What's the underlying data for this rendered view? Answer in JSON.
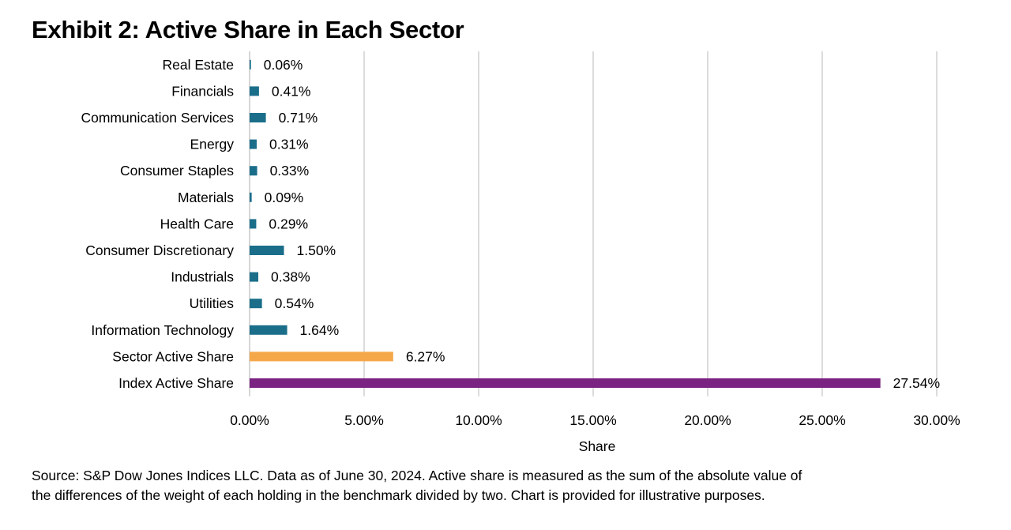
{
  "chart_data": {
    "type": "bar",
    "orientation": "horizontal",
    "title": "Exhibit 2: Active Share in Each Sector",
    "categories": [
      "Real Estate",
      "Financials",
      "Communication Services",
      "Energy",
      "Consumer Staples",
      "Materials",
      "Health Care",
      "Consumer Discretionary",
      "Industrials",
      "Utilities",
      "Information Technology",
      "Sector Active Share",
      "Index Active Share"
    ],
    "values": [
      0.06,
      0.41,
      0.71,
      0.31,
      0.33,
      0.09,
      0.29,
      1.5,
      0.38,
      0.54,
      1.64,
      6.27,
      27.54
    ],
    "data_labels": [
      "0.06%",
      "0.41%",
      "0.71%",
      "0.31%",
      "0.33%",
      "0.09%",
      "0.29%",
      "1.50%",
      "0.38%",
      "0.54%",
      "1.64%",
      "6.27%",
      "27.54%"
    ],
    "bar_colors": [
      "#1a6e8a",
      "#1a6e8a",
      "#1a6e8a",
      "#1a6e8a",
      "#1a6e8a",
      "#1a6e8a",
      "#1a6e8a",
      "#1a6e8a",
      "#1a6e8a",
      "#1a6e8a",
      "#1a6e8a",
      "#f5a84a",
      "#7b2382"
    ],
    "xlabel": "Share",
    "ylabel": "",
    "xlim": [
      0,
      30
    ],
    "xticks": [
      "0.00%",
      "5.00%",
      "10.00%",
      "15.00%",
      "20.00%",
      "25.00%",
      "30.00%"
    ],
    "grid": "vertical"
  },
  "footer": {
    "line1": "Source: S&P Dow Jones Indices LLC. Data as of June 30, 2024. Active share is measured as the sum of the absolute value of",
    "line2": "the differences of the weight of each holding in the benchmark divided by two. Chart is provided for illustrative purposes."
  },
  "colors": {
    "grid": "#c8c8c8",
    "axis": "#bfbfbf"
  }
}
